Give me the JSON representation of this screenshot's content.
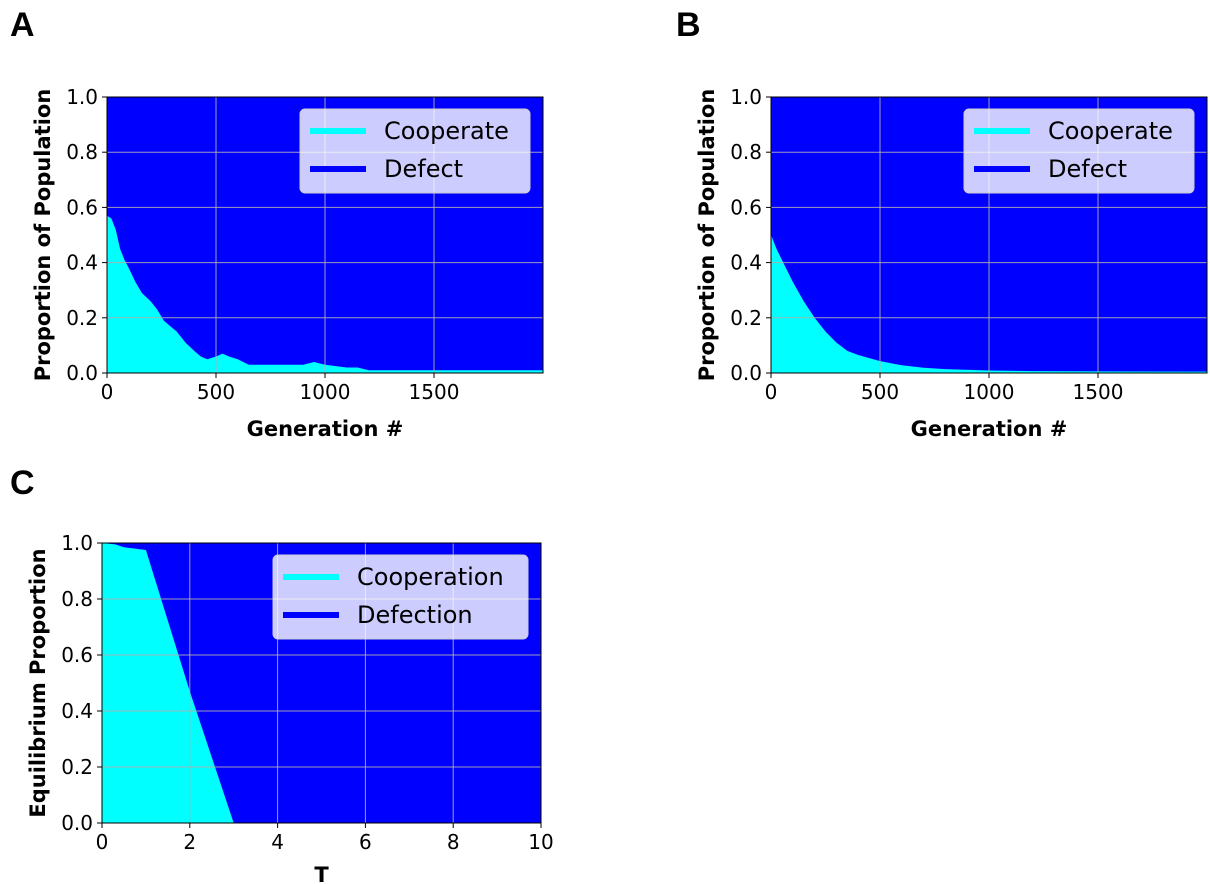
{
  "chart_data": [
    {
      "panel": "A",
      "type": "area",
      "xlabel": "Generation #",
      "ylabel": "Proportion of Population",
      "xlim": [
        0,
        2000
      ],
      "ylim": [
        0,
        1.0
      ],
      "xticks": [
        0,
        500,
        1000,
        1500
      ],
      "yticks": [
        0.0,
        0.2,
        0.4,
        0.6,
        0.8,
        1.0
      ],
      "ytick_labels": [
        "0.0",
        "0.2",
        "0.4",
        "0.6",
        "0.8",
        "1.0"
      ],
      "grid": true,
      "legend_position": "upper-right",
      "colors": {
        "cooperate": "#00FFFF",
        "defect": "#0000FF"
      },
      "series": [
        {
          "name": "Cooperate",
          "color": "#00FFFF",
          "x": [
            0,
            20,
            40,
            60,
            80,
            100,
            130,
            160,
            200,
            230,
            260,
            290,
            320,
            360,
            400,
            430,
            460,
            500,
            530,
            560,
            600,
            650,
            700,
            750,
            800,
            850,
            900,
            950,
            1000,
            1100,
            1150,
            1200,
            1400,
            1600,
            1800,
            2000
          ],
          "values": [
            0.57,
            0.56,
            0.52,
            0.45,
            0.41,
            0.38,
            0.33,
            0.29,
            0.26,
            0.23,
            0.19,
            0.17,
            0.15,
            0.11,
            0.08,
            0.06,
            0.05,
            0.06,
            0.07,
            0.06,
            0.05,
            0.03,
            0.03,
            0.03,
            0.03,
            0.03,
            0.03,
            0.04,
            0.03,
            0.02,
            0.02,
            0.01,
            0.01,
            0.01,
            0.01,
            0.01
          ]
        },
        {
          "name": "Defect",
          "color": "#0000FF",
          "note_complement": true
        }
      ]
    },
    {
      "panel": "B",
      "type": "area",
      "xlabel": "Generation #",
      "ylabel": "Proportion of Population",
      "xlim": [
        0,
        2000
      ],
      "ylim": [
        0,
        1.0
      ],
      "xticks": [
        0,
        500,
        1000,
        1500
      ],
      "yticks": [
        0.0,
        0.2,
        0.4,
        0.6,
        0.8,
        1.0
      ],
      "ytick_labels": [
        "0.0",
        "0.2",
        "0.4",
        "0.6",
        "0.8",
        "1.0"
      ],
      "grid": true,
      "legend_position": "upper-right",
      "colors": {
        "cooperate": "#00FFFF",
        "defect": "#0000FF"
      },
      "series": [
        {
          "name": "Cooperate",
          "color": "#00FFFF",
          "x": [
            0,
            25,
            50,
            75,
            100,
            150,
            200,
            250,
            300,
            350,
            400,
            500,
            600,
            700,
            800,
            1000,
            1200,
            1500,
            2000
          ],
          "values": [
            0.5,
            0.45,
            0.41,
            0.37,
            0.33,
            0.26,
            0.2,
            0.15,
            0.11,
            0.08,
            0.065,
            0.043,
            0.028,
            0.019,
            0.014,
            0.009,
            0.007,
            0.006,
            0.005
          ]
        },
        {
          "name": "Defect",
          "color": "#0000FF",
          "note_complement": true
        }
      ]
    },
    {
      "panel": "C",
      "type": "area",
      "xlabel": "T",
      "ylabel": "Equilibrium Proportion",
      "xlim": [
        0,
        10
      ],
      "ylim": [
        0,
        1.0
      ],
      "xticks": [
        0,
        2,
        4,
        6,
        8,
        10
      ],
      "yticks": [
        0.0,
        0.2,
        0.4,
        0.6,
        0.8,
        1.0
      ],
      "ytick_labels": [
        "0.0",
        "0.2",
        "0.4",
        "0.6",
        "0.8",
        "1.0"
      ],
      "grid": true,
      "legend_position": "upper-right",
      "colors": {
        "cooperate": "#00FFFF",
        "defect": "#0000FF"
      },
      "series": [
        {
          "name": "Cooperation",
          "color": "#00FFFF",
          "x": [
            0,
            0.3,
            0.5,
            1.0,
            2.0,
            3.0,
            3.5,
            4,
            6,
            8,
            10
          ],
          "values": [
            1.0,
            0.995,
            0.985,
            0.975,
            0.47,
            0.0,
            0.0,
            0.0,
            0.0,
            0.0,
            0.0
          ]
        },
        {
          "name": "Defection",
          "color": "#0000FF",
          "note_complement": true
        }
      ]
    }
  ]
}
